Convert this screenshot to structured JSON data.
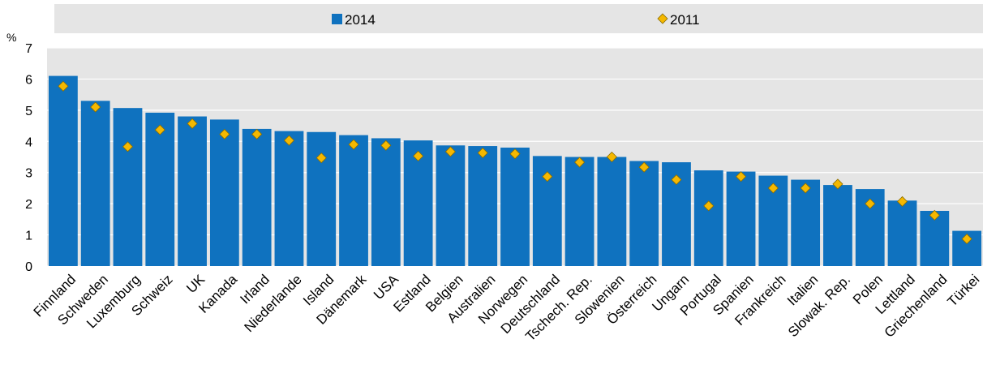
{
  "chart_data": {
    "type": "bar",
    "unit_label": "%",
    "ylim": [
      0,
      7
    ],
    "yticks": [
      0,
      1,
      2,
      3,
      4,
      5,
      6,
      7
    ],
    "grid": true,
    "legend_position": "top",
    "categories": [
      "Finnland",
      "Schweden",
      "Luxemburg",
      "Schweiz",
      "UK",
      "Kanada",
      "Irland",
      "Niederlande",
      "Island",
      "Dänemark",
      "USA",
      "Estland",
      "Belgien",
      "Australien",
      "Norwegen",
      "Deutschland",
      "Tschech. Rep.",
      "Slowenien",
      "Österreich",
      "Ungarn",
      "Portugal",
      "Spanien",
      "Frankreich",
      "Italien",
      "Slowak. Rep.",
      "Polen",
      "Lettland",
      "Griechenland",
      "Türkei"
    ],
    "series": [
      {
        "name": "2014",
        "kind": "bar",
        "color": "#0f72bf",
        "values": [
          6.1,
          5.3,
          5.07,
          4.92,
          4.8,
          4.7,
          4.4,
          4.33,
          4.3,
          4.2,
          4.1,
          4.03,
          3.87,
          3.85,
          3.8,
          3.53,
          3.5,
          3.5,
          3.37,
          3.33,
          3.07,
          3.03,
          2.9,
          2.77,
          2.6,
          2.47,
          2.1,
          1.77,
          1.13
        ]
      },
      {
        "name": "2011",
        "kind": "diamond",
        "color": "#f5b800",
        "values": [
          5.77,
          5.1,
          3.83,
          4.37,
          4.57,
          4.23,
          4.23,
          4.03,
          3.47,
          3.9,
          3.87,
          3.53,
          3.67,
          3.63,
          3.6,
          2.87,
          3.33,
          3.5,
          3.17,
          2.77,
          1.93,
          2.87,
          2.5,
          2.5,
          2.63,
          2.0,
          2.07,
          1.63,
          0.87
        ]
      }
    ]
  }
}
